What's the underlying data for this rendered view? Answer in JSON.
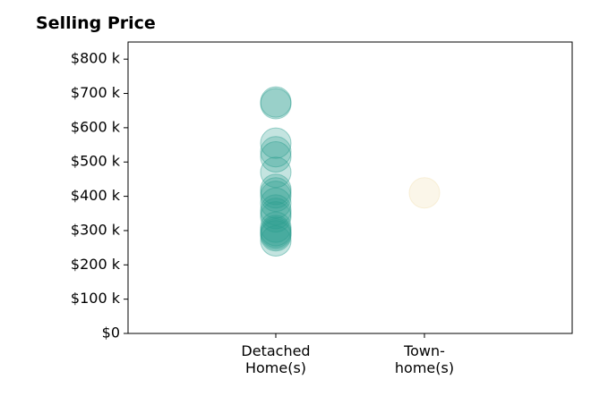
{
  "chart_data": {
    "type": "scatter",
    "title": "Selling Price",
    "xlabel": "",
    "ylabel": "",
    "categories": [
      [
        "Detached",
        "Home(s)"
      ],
      [
        "Town-",
        "home(s)"
      ]
    ],
    "ylim": [
      0,
      850000
    ],
    "yticks": [
      {
        "value": 0,
        "label": "$0"
      },
      {
        "value": 100000,
        "label": "$100 k"
      },
      {
        "value": 200000,
        "label": "$200 k"
      },
      {
        "value": 300000,
        "label": "$300 k"
      },
      {
        "value": 400000,
        "label": "$400 k"
      },
      {
        "value": 500000,
        "label": "$500 k"
      },
      {
        "value": 600000,
        "label": "$600 k"
      },
      {
        "value": 700000,
        "label": "$700 k"
      },
      {
        "value": 800000,
        "label": "$800 k"
      }
    ],
    "grid": false,
    "series": [
      {
        "category_index": 0,
        "color": "#2a9d8f",
        "values": [
          670000,
          675000,
          555000,
          530000,
          515000,
          470000,
          420000,
          410000,
          400000,
          380000,
          360000,
          350000,
          340000,
          310000,
          300000,
          295000,
          290000,
          285000,
          270000
        ]
      },
      {
        "category_index": 1,
        "color": "#f2dfb1",
        "values": [
          410000
        ]
      }
    ]
  }
}
